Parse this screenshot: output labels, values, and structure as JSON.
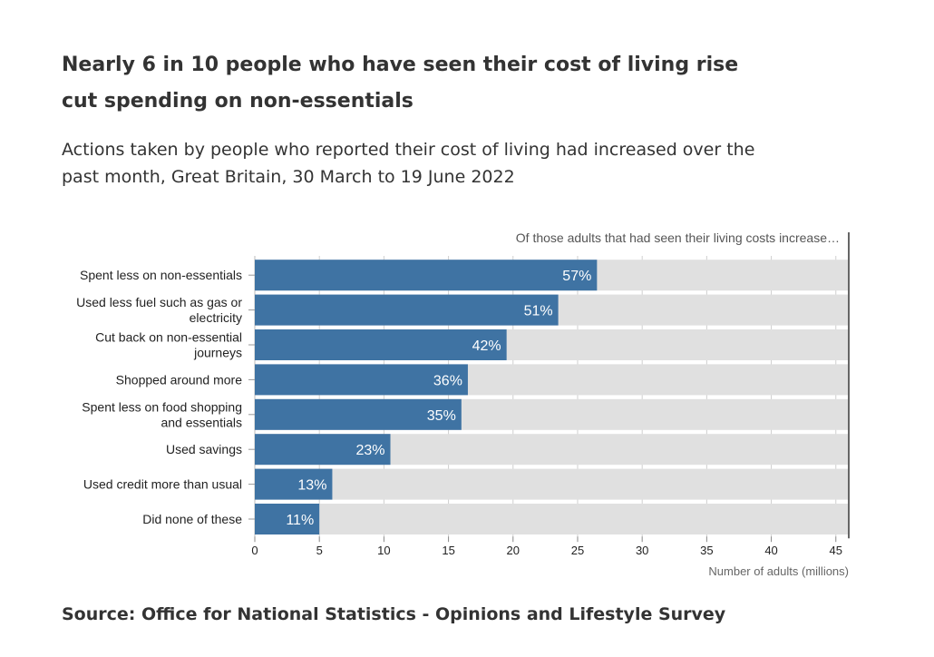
{
  "title": "Nearly 6 in 10 people who have seen their cost of living rise cut spending on non-essentials",
  "subtitle": "Actions taken by people who reported their cost of living had increased over the past month, Great Britain, 30 March to 19 June 2022",
  "source": "Source: Office for National Statistics - Opinions and Lifestyle Survey",
  "colors": {
    "bar": "#3f73a3",
    "background_bar": "#e0e0e0",
    "reference_line": "#666666"
  },
  "chart_data": {
    "type": "bar",
    "orientation": "horizontal",
    "annotation": "Of those adults that had seen their living costs increase…",
    "xlabel": "Number of adults (millions)",
    "ylabel": "",
    "xlim": [
      0,
      46
    ],
    "x_ticks": [
      0,
      5,
      10,
      15,
      20,
      25,
      30,
      35,
      40,
      45
    ],
    "total_adults_millions": 46,
    "grid": true,
    "categories": [
      [
        "Spent less on non-essentials"
      ],
      [
        "Used less fuel such as gas or",
        "electricity"
      ],
      [
        "Cut back on non-essential",
        "journeys"
      ],
      [
        "Shopped around more"
      ],
      [
        "Spent less on food shopping",
        "and essentials"
      ],
      [
        "Used savings"
      ],
      [
        "Used credit more than usual"
      ],
      [
        "Did none of these"
      ]
    ],
    "values": [
      26.5,
      23.5,
      19.5,
      16.5,
      16.0,
      10.5,
      6.0,
      5.0
    ],
    "data_labels": [
      "57%",
      "51%",
      "42%",
      "36%",
      "35%",
      "23%",
      "13%",
      "11%"
    ]
  }
}
